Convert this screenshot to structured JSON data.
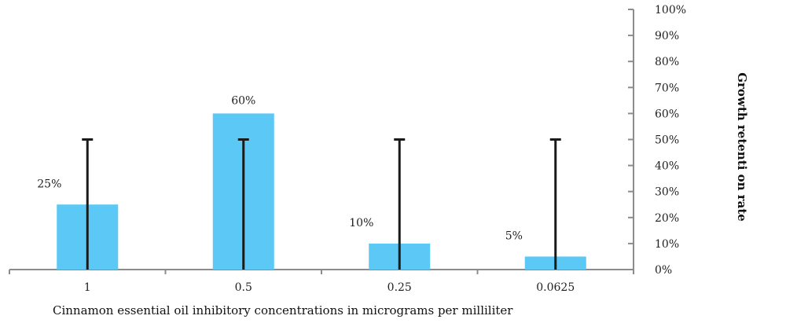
{
  "chart_data": {
    "type": "bar",
    "categories": [
      "1",
      "0.5",
      "0.25",
      "0.0625"
    ],
    "values": [
      25,
      60,
      10,
      5
    ],
    "data_labels": [
      "25%",
      "60%",
      "10%",
      "5%"
    ],
    "error_bar_upper": [
      50,
      50,
      50,
      50
    ],
    "xlabel": "Cinnamon essential oil inhibitory concentrations in micrograms per milliliter",
    "ylabel": "Growth retenti on rate",
    "ylim": [
      0,
      100
    ],
    "y_ticks": [
      0,
      10,
      20,
      30,
      40,
      50,
      60,
      70,
      80,
      90,
      100
    ],
    "y_tick_labels": [
      "0%",
      "10%",
      "20%",
      "30%",
      "40%",
      "50%",
      "60%",
      "70%",
      "80%",
      "90%",
      "100%"
    ],
    "y_axis_side": "right",
    "bar_color": "#5bc8f5",
    "error_bar_color": "#1a1a1a",
    "axis_color": "#8c8c8c",
    "grid": false,
    "legend": false
  }
}
